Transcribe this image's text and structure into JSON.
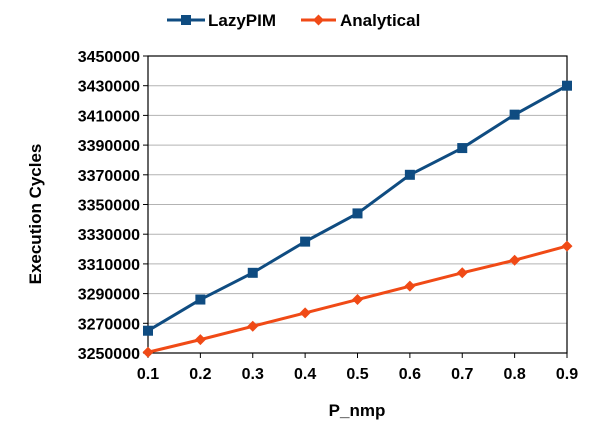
{
  "chart_data": {
    "type": "line",
    "title": "",
    "xlabel": "P_nmp",
    "ylabel": "Execution Cycles",
    "x": [
      0.1,
      0.2,
      0.3,
      0.4,
      0.5,
      0.6,
      0.7,
      0.8,
      0.9
    ],
    "x_tick_labels": [
      "0.1",
      "0.2",
      "0.3",
      "0.4",
      "0.5",
      "0.6",
      "0.7",
      "0.8",
      "0.9"
    ],
    "y_tick_labels": [
      "3250000",
      "3270000",
      "3290000",
      "3310000",
      "3330000",
      "3350000",
      "3370000",
      "3390000",
      "3410000",
      "3430000",
      "3450000"
    ],
    "y_ticks": [
      3250000,
      3270000,
      3290000,
      3310000,
      3330000,
      3350000,
      3370000,
      3390000,
      3410000,
      3430000,
      3450000
    ],
    "xlim": [
      0.1,
      0.9
    ],
    "ylim": [
      3250000,
      3450000
    ],
    "grid": "horizontal",
    "legend_position": "top-center",
    "series": [
      {
        "name": "LazyPIM",
        "color": "#0F4C81",
        "marker": "square",
        "values": [
          3265000,
          3286000,
          3304000,
          3325000,
          3344000,
          3370000,
          3388000,
          3410500,
          3430000
        ]
      },
      {
        "name": "Analytical",
        "color": "#F04A16",
        "marker": "diamond",
        "values": [
          3250500,
          3259000,
          3268000,
          3277000,
          3286000,
          3295000,
          3304000,
          3312500,
          3322000
        ]
      }
    ]
  }
}
